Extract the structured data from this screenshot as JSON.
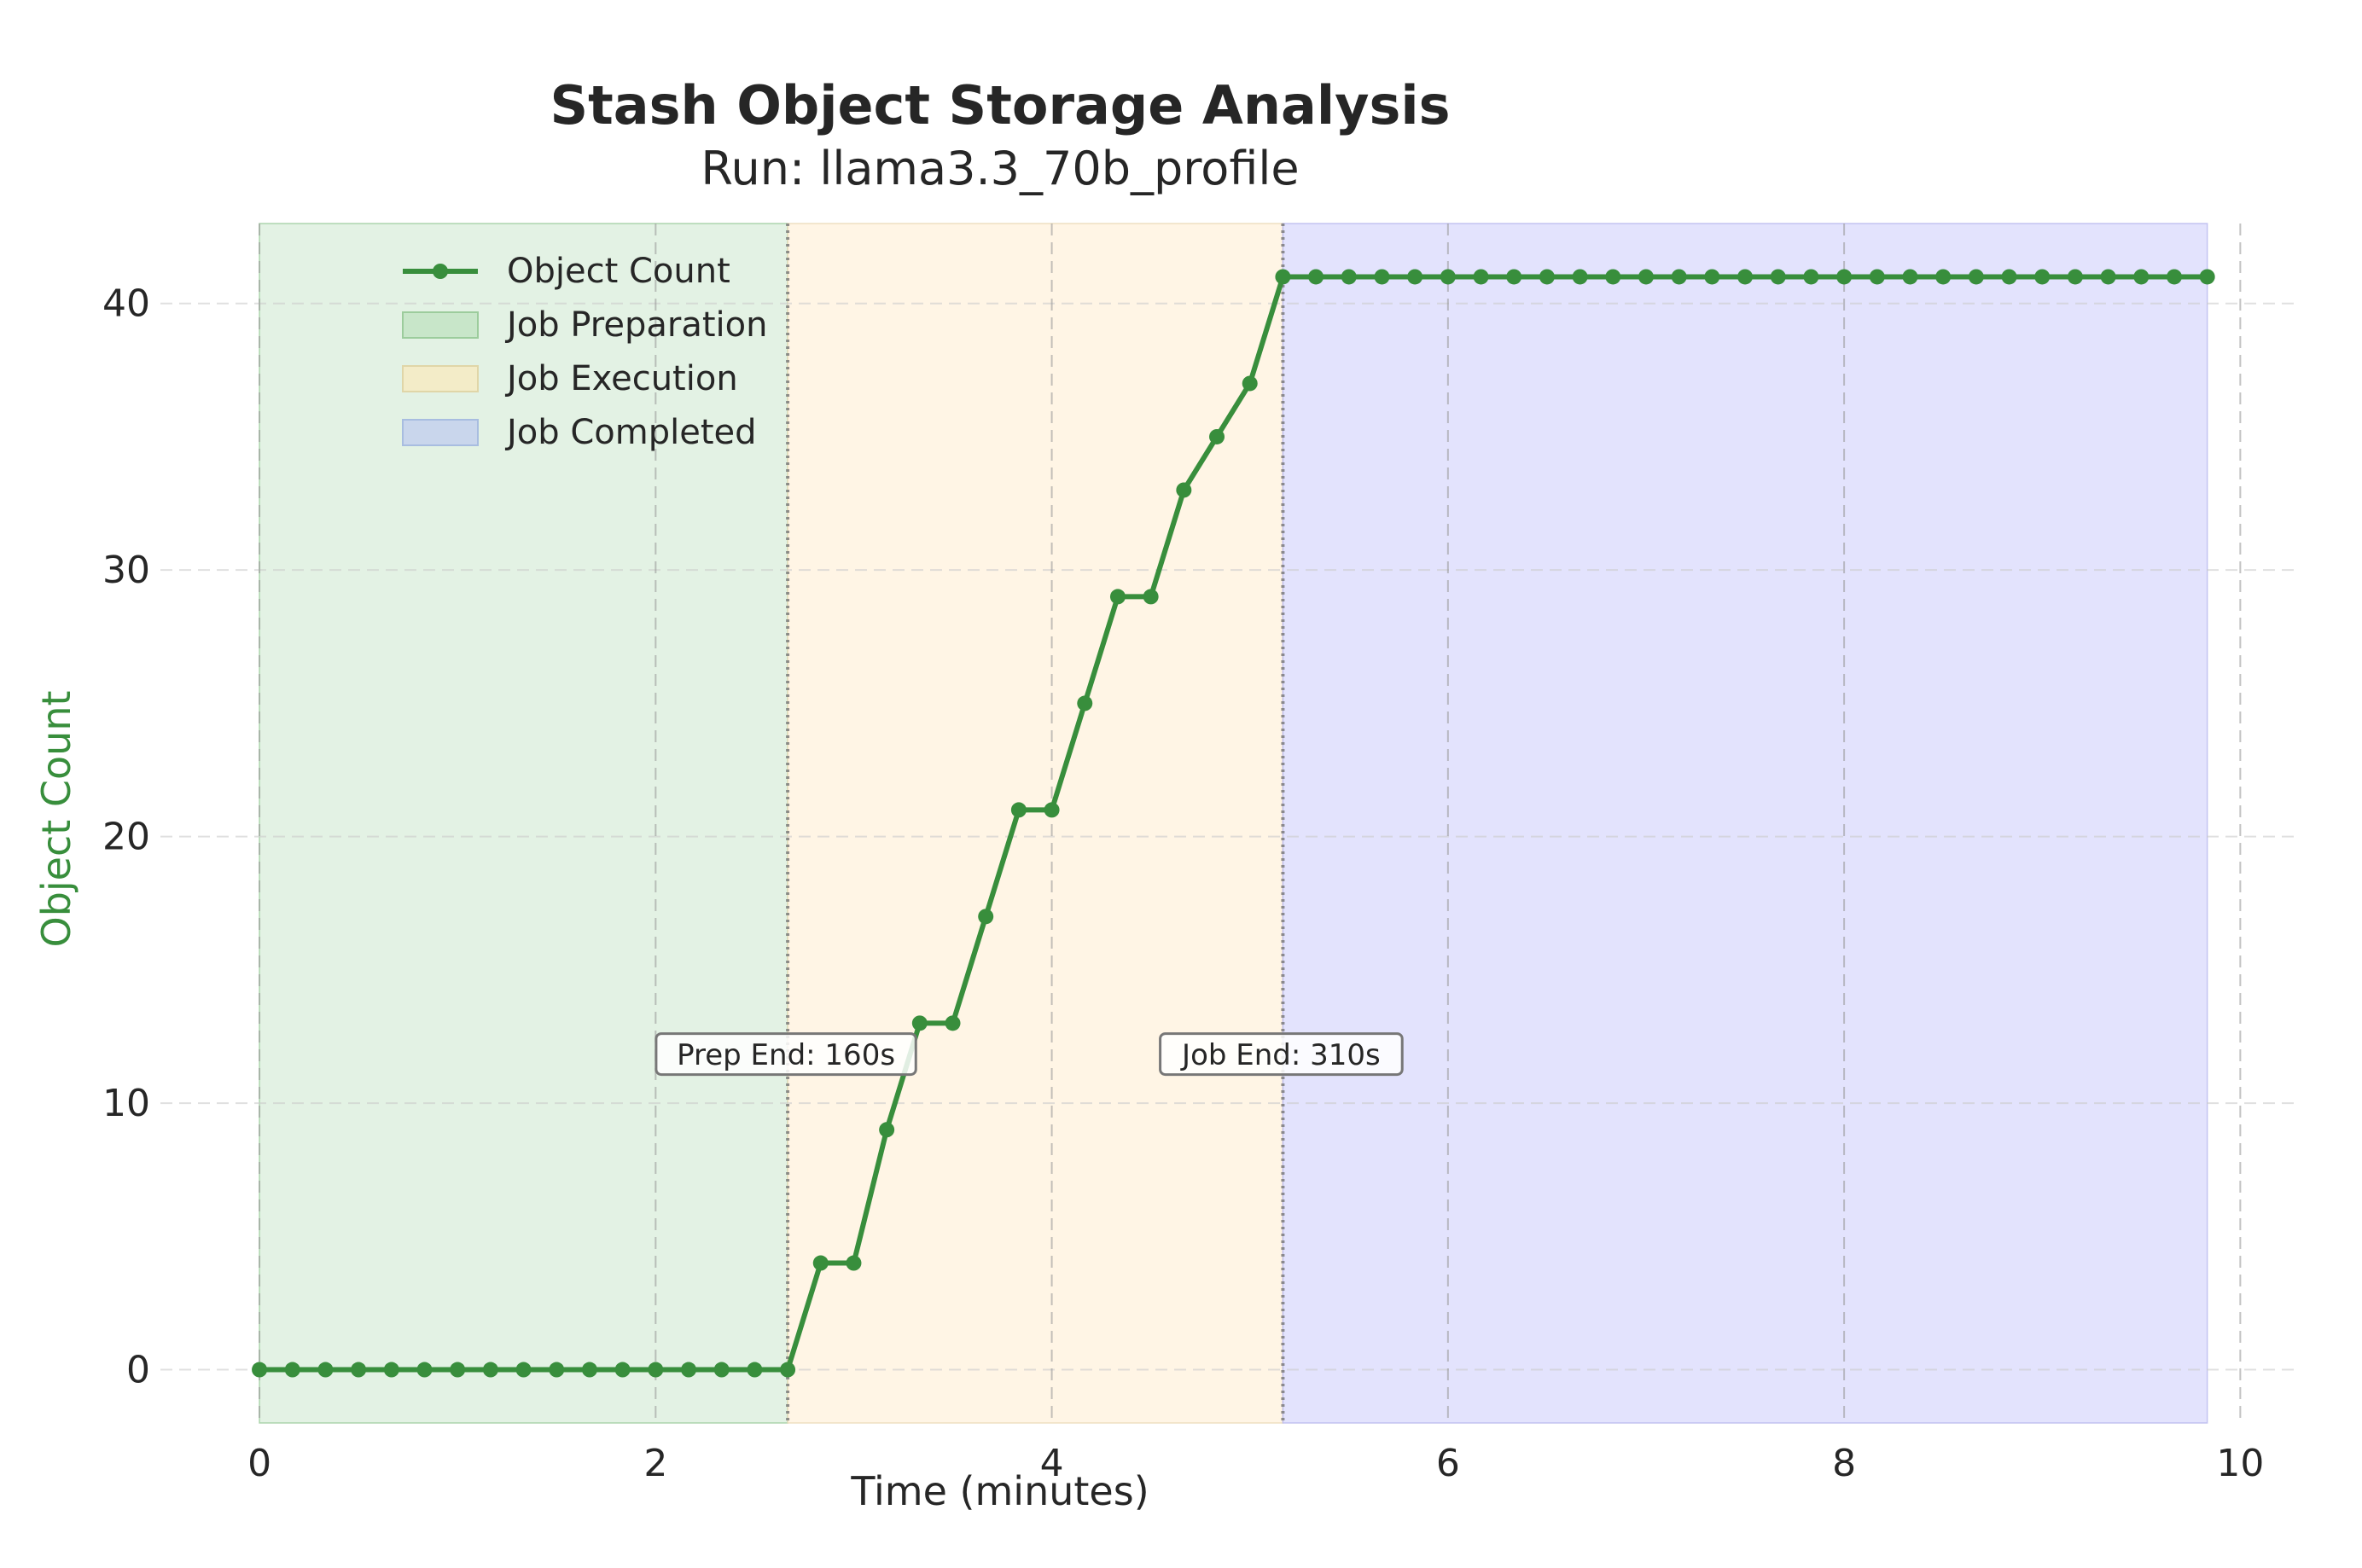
{
  "chart_data": {
    "type": "line",
    "title": "Stash Object Storage Analysis",
    "subtitle": "Run: llama3.3_70b_profile",
    "xlabel": "Time (minutes)",
    "ylabel": "Object Count",
    "xlim": [
      -0.5,
      10.3
    ],
    "ylim": [
      -2,
      43
    ],
    "xticks": [
      0,
      2,
      4,
      6,
      8,
      10
    ],
    "xtick_labels": [
      "0",
      "2",
      "4",
      "6",
      "8",
      "10"
    ],
    "yticks": [
      0,
      10,
      20,
      30,
      40
    ],
    "ytick_labels": [
      "0",
      "10",
      "20",
      "30",
      "40"
    ],
    "grid": true,
    "legend_position": "top-left",
    "colors": {
      "line": "#388e3c",
      "ylabel": "#388e3c",
      "preparation": "#c8e6c9",
      "execution": "#fff3e0",
      "completed": "#d1d1fb"
    },
    "series": [
      {
        "name": "Object Count",
        "x": [
          0,
          0.1667,
          0.3333,
          0.5,
          0.6667,
          0.8333,
          1.0,
          1.1667,
          1.3333,
          1.5,
          1.6667,
          1.8333,
          2.0,
          2.1667,
          2.3333,
          2.5,
          2.6667,
          2.8333,
          3.0,
          3.1667,
          3.3333,
          3.5,
          3.6667,
          3.8333,
          4.0,
          4.1667,
          4.3333,
          4.5,
          4.6667,
          4.8333,
          5.0,
          5.1667,
          5.3333,
          5.5,
          5.6667,
          5.8333,
          6.0,
          6.1667,
          6.3333,
          6.5,
          6.6667,
          6.8333,
          7.0,
          7.1667,
          7.3333,
          7.5,
          7.6667,
          7.8333,
          8.0,
          8.1667,
          8.3333,
          8.5,
          8.6667,
          8.8333,
          9.0,
          9.1667,
          9.3333,
          9.5,
          9.6667,
          9.8333
        ],
        "y": [
          0,
          0,
          0,
          0,
          0,
          0,
          0,
          0,
          0,
          0,
          0,
          0,
          0,
          0,
          0,
          0,
          0,
          4,
          4,
          9,
          13,
          13,
          17,
          21,
          21,
          25,
          29,
          29,
          33,
          35,
          37,
          41,
          41,
          41,
          41,
          41,
          41,
          41,
          41,
          41,
          41,
          41,
          41,
          41,
          41,
          41,
          41,
          41,
          41,
          41,
          41,
          41,
          41,
          41,
          41,
          41,
          41,
          41,
          41,
          41
        ]
      }
    ],
    "phases": [
      {
        "name": "Job Preparation",
        "start": 0,
        "end": 2.6667
      },
      {
        "name": "Job Execution",
        "start": 2.6667,
        "end": 5.1667
      },
      {
        "name": "Job Completed",
        "start": 5.1667,
        "end": 9.8333
      }
    ],
    "annotations": [
      {
        "text": "Prep End: 160s",
        "x": 2.6667,
        "y": 12
      },
      {
        "text": "Job End: 310s",
        "x": 5.1667,
        "y": 12
      }
    ]
  }
}
